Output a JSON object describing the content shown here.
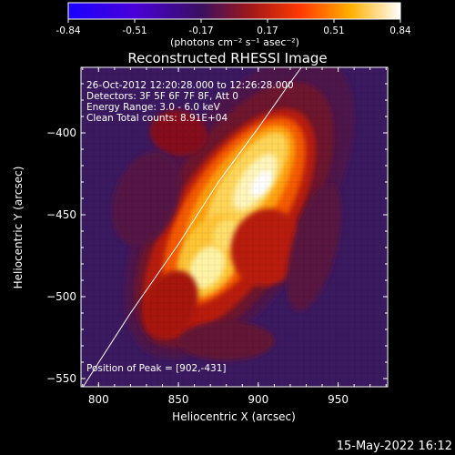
{
  "colorbar": {
    "ticks": [
      "-0.84",
      "-0.51",
      "-0.17",
      "0.17",
      "0.51",
      "0.84"
    ],
    "unit_label": "(photons cm⁻² s⁻¹ asec⁻²)"
  },
  "chart_data": {
    "type": "heatmap",
    "title": "Reconstructed RHESSI Image",
    "xlabel": "Heliocentric X (arcsec)",
    "ylabel": "Heliocentric Y (arcsec)",
    "xlim": [
      789,
      981
    ],
    "ylim": [
      -555,
      -360
    ],
    "xticks": [
      800,
      850,
      900,
      950
    ],
    "yticks": [
      -400,
      -450,
      -500,
      -550
    ],
    "color_range": [
      -0.84,
      0.84
    ],
    "colormap": "IDL red-temperature (blue - purple - red - orange - yellow - white)",
    "peak": [
      902,
      -431
    ],
    "info_lines": [
      "26-Oct-2012 12:20:28.000 to 12:26:28.000",
      "Detectors: 3F 5F 6F 7F 8F, Att 0",
      "Energy Range: 3.0 - 6.0 keV",
      "Clean    Total counts: 8.91E+04"
    ],
    "peak_label": "Position of Peak = [902,-431]",
    "limb_curve": [
      [
        789,
        -557
      ],
      [
        820,
        -510
      ],
      [
        850,
        -468
      ],
      [
        875,
        -430
      ],
      [
        900,
        -397
      ],
      [
        918,
        -372
      ],
      [
        927,
        -360
      ]
    ],
    "background_color": "#3b1a60",
    "line_color": "#ffffff"
  },
  "footer": {
    "timestamp": "15-May-2022 16:12"
  }
}
